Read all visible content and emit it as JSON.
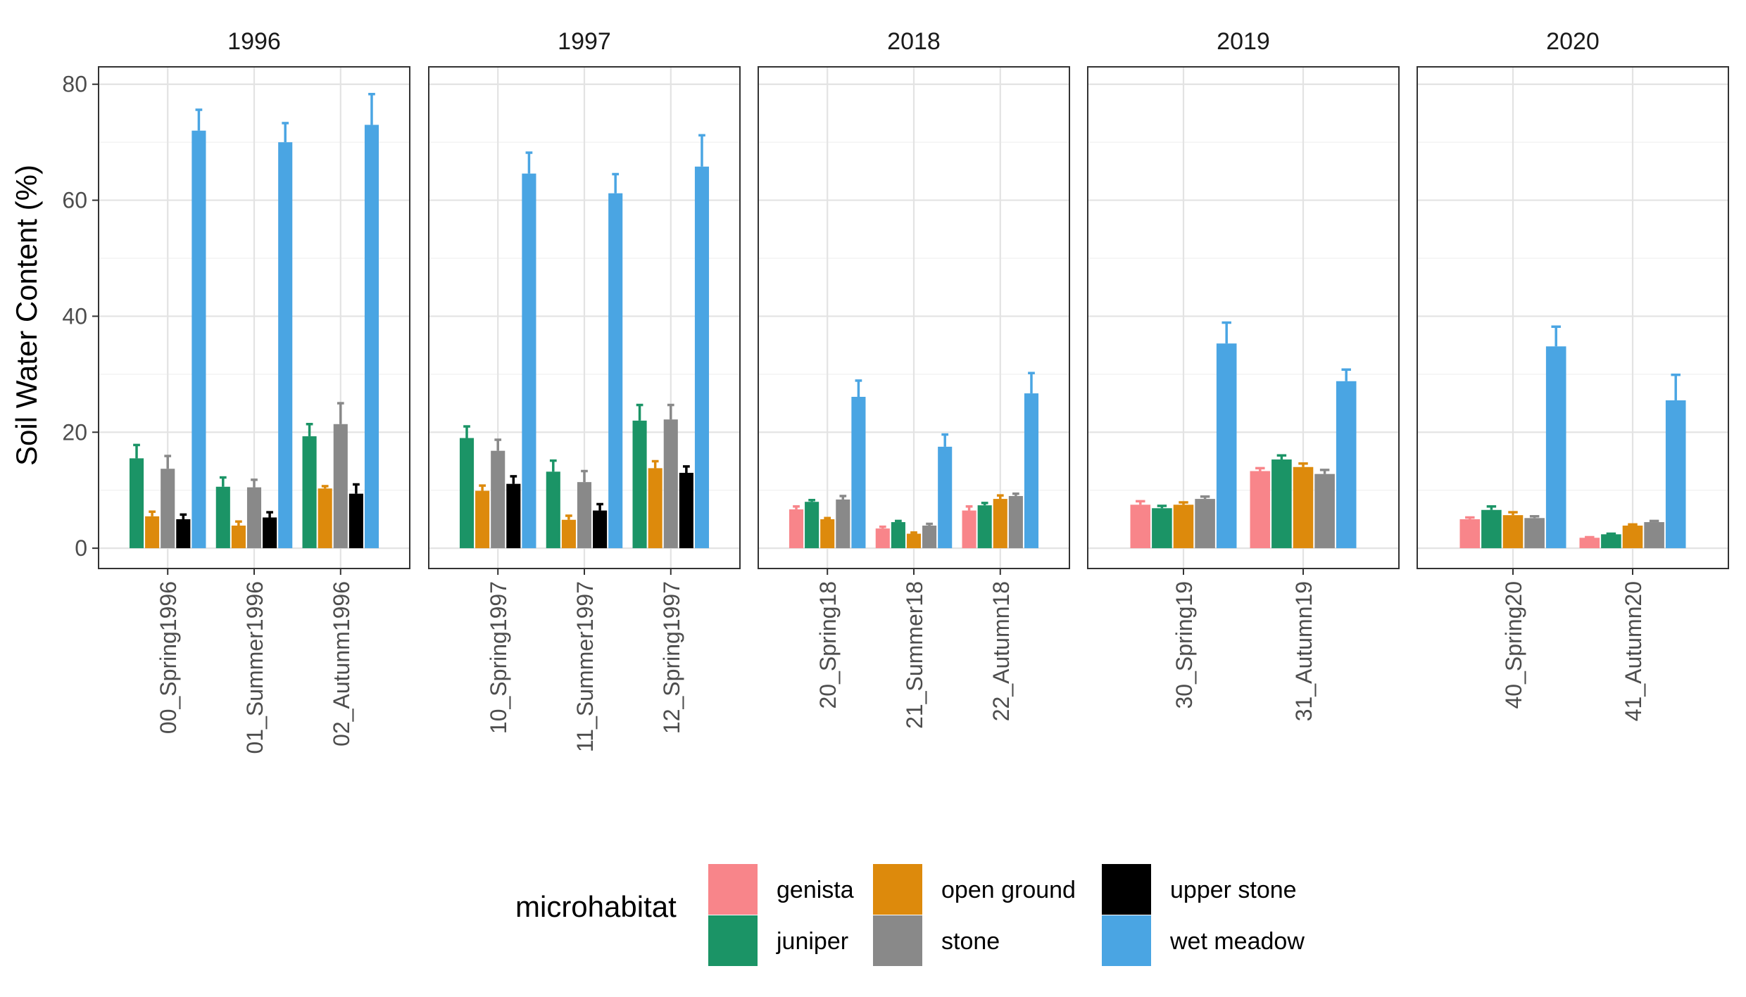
{
  "chart_data": {
    "type": "bar",
    "ylabel": "Soil Water Content (%)",
    "xlabel": "",
    "ylim": [
      -3.5,
      83
    ],
    "yticks": [
      0,
      20,
      40,
      60,
      80
    ],
    "grid": true,
    "legend_position": "bottom",
    "legend_title": "microhabitat",
    "series": [
      {
        "name": "genista",
        "color": "#F8858A"
      },
      {
        "name": "juniper",
        "color": "#1B9466"
      },
      {
        "name": "open ground",
        "color": "#DD8A0C"
      },
      {
        "name": "stone",
        "color": "#898989"
      },
      {
        "name": "upper stone",
        "color": "#000000"
      },
      {
        "name": "wet meadow",
        "color": "#4AA5E3"
      }
    ],
    "legend_order": [
      "genista",
      "open ground",
      "upper stone",
      "juniper",
      "stone",
      "wet meadow"
    ],
    "facets": [
      {
        "label": "1996",
        "series": [
          "juniper",
          "open ground",
          "stone",
          "upper stone",
          "wet meadow"
        ],
        "groups": [
          {
            "category": "00_Spring1996",
            "values": [
              15.5,
              5.5,
              13.7,
              5.0,
              72.0
            ],
            "errors": [
              2.3,
              0.8,
              2.2,
              0.8,
              3.6
            ]
          },
          {
            "category": "01_Summer1996",
            "values": [
              10.6,
              3.9,
              10.5,
              5.3,
              70.0
            ],
            "errors": [
              1.6,
              0.7,
              1.3,
              0.9,
              3.3
            ]
          },
          {
            "category": "02_Autunm1996",
            "values": [
              19.3,
              10.3,
              21.4,
              9.4,
              73.0
            ],
            "errors": [
              2.1,
              0.4,
              3.6,
              1.6,
              5.3
            ]
          }
        ]
      },
      {
        "label": "1997",
        "series": [
          "juniper",
          "open ground",
          "stone",
          "upper stone",
          "wet meadow"
        ],
        "groups": [
          {
            "category": "10_Spring1997",
            "values": [
              19.0,
              9.9,
              16.8,
              11.1,
              64.6
            ],
            "errors": [
              2.0,
              0.9,
              1.9,
              1.3,
              3.6
            ]
          },
          {
            "category": "11_Summer1997",
            "values": [
              13.2,
              4.9,
              11.4,
              6.5,
              61.2
            ],
            "errors": [
              1.9,
              0.7,
              1.9,
              1.1,
              3.3
            ]
          },
          {
            "category": "12_Spring1997",
            "values": [
              22.0,
              13.8,
              22.2,
              13.0,
              65.8
            ],
            "errors": [
              2.7,
              1.2,
              2.5,
              1.1,
              5.4
            ]
          }
        ]
      },
      {
        "label": "2018",
        "series": [
          "genista",
          "juniper",
          "open ground",
          "stone",
          "wet meadow"
        ],
        "groups": [
          {
            "category": "20_Spring18",
            "values": [
              6.7,
              8.0,
              5.0,
              8.4,
              26.1
            ],
            "errors": [
              0.5,
              0.3,
              0.2,
              0.6,
              2.8
            ]
          },
          {
            "category": "21_Summer18",
            "values": [
              3.4,
              4.5,
              2.5,
              3.9,
              17.5
            ],
            "errors": [
              0.3,
              0.2,
              0.2,
              0.3,
              2.1
            ]
          },
          {
            "category": "22_Autumn18",
            "values": [
              6.5,
              7.4,
              8.5,
              9.0,
              26.7
            ],
            "errors": [
              0.7,
              0.4,
              0.6,
              0.4,
              3.5
            ]
          }
        ]
      },
      {
        "label": "2019",
        "series": [
          "genista",
          "juniper",
          "open ground",
          "stone",
          "wet meadow"
        ],
        "groups": [
          {
            "category": "30_Spring19",
            "values": [
              7.5,
              6.9,
              7.5,
              8.5,
              35.3
            ],
            "errors": [
              0.6,
              0.4,
              0.4,
              0.4,
              3.6
            ]
          },
          {
            "category": "31_Autumn19",
            "values": [
              13.3,
              15.3,
              14.0,
              12.8,
              28.8
            ],
            "errors": [
              0.5,
              0.7,
              0.6,
              0.7,
              2.0
            ]
          }
        ]
      },
      {
        "label": "2020",
        "series": [
          "genista",
          "juniper",
          "open ground",
          "stone",
          "wet meadow"
        ],
        "groups": [
          {
            "category": "40_Spring20",
            "values": [
              5.0,
              6.6,
              5.7,
              5.2,
              34.8
            ],
            "errors": [
              0.3,
              0.6,
              0.5,
              0.3,
              3.4
            ]
          },
          {
            "category": "41_Autumn20",
            "values": [
              1.8,
              2.4,
              3.9,
              4.5,
              25.5
            ],
            "errors": [
              0.1,
              0.1,
              0.2,
              0.2,
              4.4
            ]
          }
        ]
      }
    ]
  }
}
